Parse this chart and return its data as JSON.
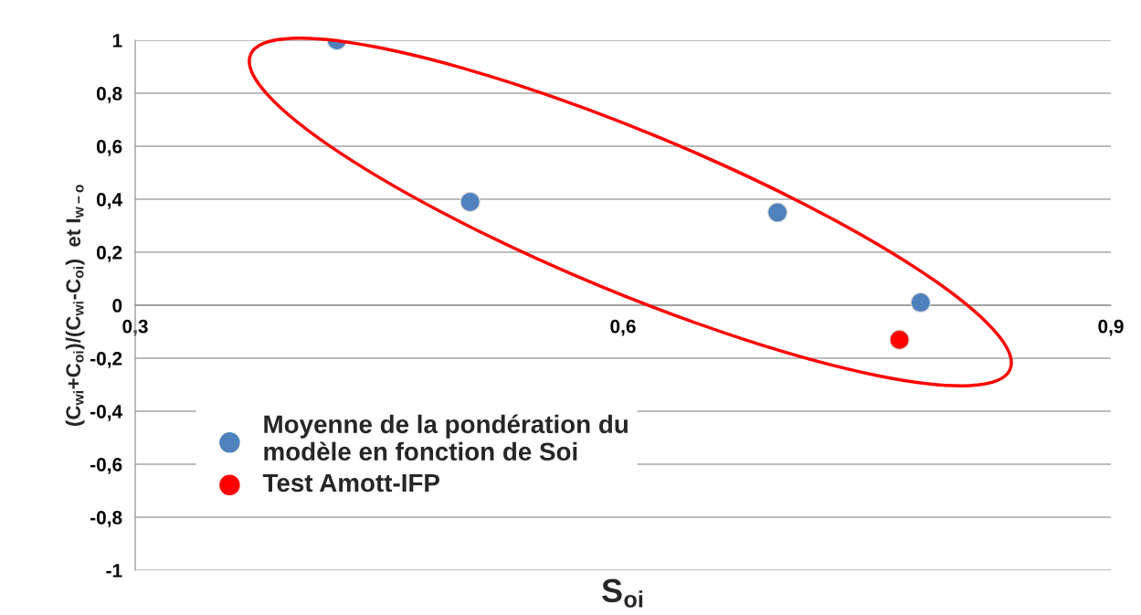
{
  "chart_data": {
    "type": "scatter",
    "xlabel": "S$_{oi}$",
    "ylabel": "(C$_{wi}$+C$_{oi}$)/(C$_{wi}$-C$_{oi}$)  et I$_{w−o}$",
    "series": [
      {
        "name": "Moyenne de la pondération du\nmodèle en fonction de Soi",
        "color": "#4f81bd",
        "x": [
          0.424,
          0.506,
          0.695,
          0.783
        ],
        "values": [
          1,
          0.39,
          0.35,
          0.01
        ]
      },
      {
        "name": "Test Amott-IFP",
        "color": "#ff0000",
        "x": [
          0.77
        ],
        "values": [
          -0.13
        ]
      }
    ],
    "xlim": [
      0.3,
      0.9
    ],
    "xticks": [
      {
        "value": 0.3,
        "label": "0,3"
      },
      {
        "value": 0.6,
        "label": "0,6"
      },
      {
        "value": 0.9,
        "label": "0,9"
      }
    ],
    "ylim": [
      -1,
      1
    ],
    "yticks": [
      {
        "value": -1,
        "label": "-1"
      },
      {
        "value": -0.8,
        "label": "-0,8"
      },
      {
        "value": -0.6,
        "label": "-0,6"
      },
      {
        "value": -0.4,
        "label": "-0,4"
      },
      {
        "value": -0.2,
        "label": "-0,2"
      },
      {
        "value": 0,
        "label": "0"
      },
      {
        "value": 0.2,
        "label": "0,2"
      },
      {
        "value": 0.4,
        "label": "0,4"
      },
      {
        "value": 0.6,
        "label": "0,6"
      },
      {
        "value": 0.8,
        "label": "0,8"
      },
      {
        "value": 1,
        "label": "1"
      }
    ],
    "grid": "y",
    "legend": "bottom left",
    "marker": "circle"
  }
}
